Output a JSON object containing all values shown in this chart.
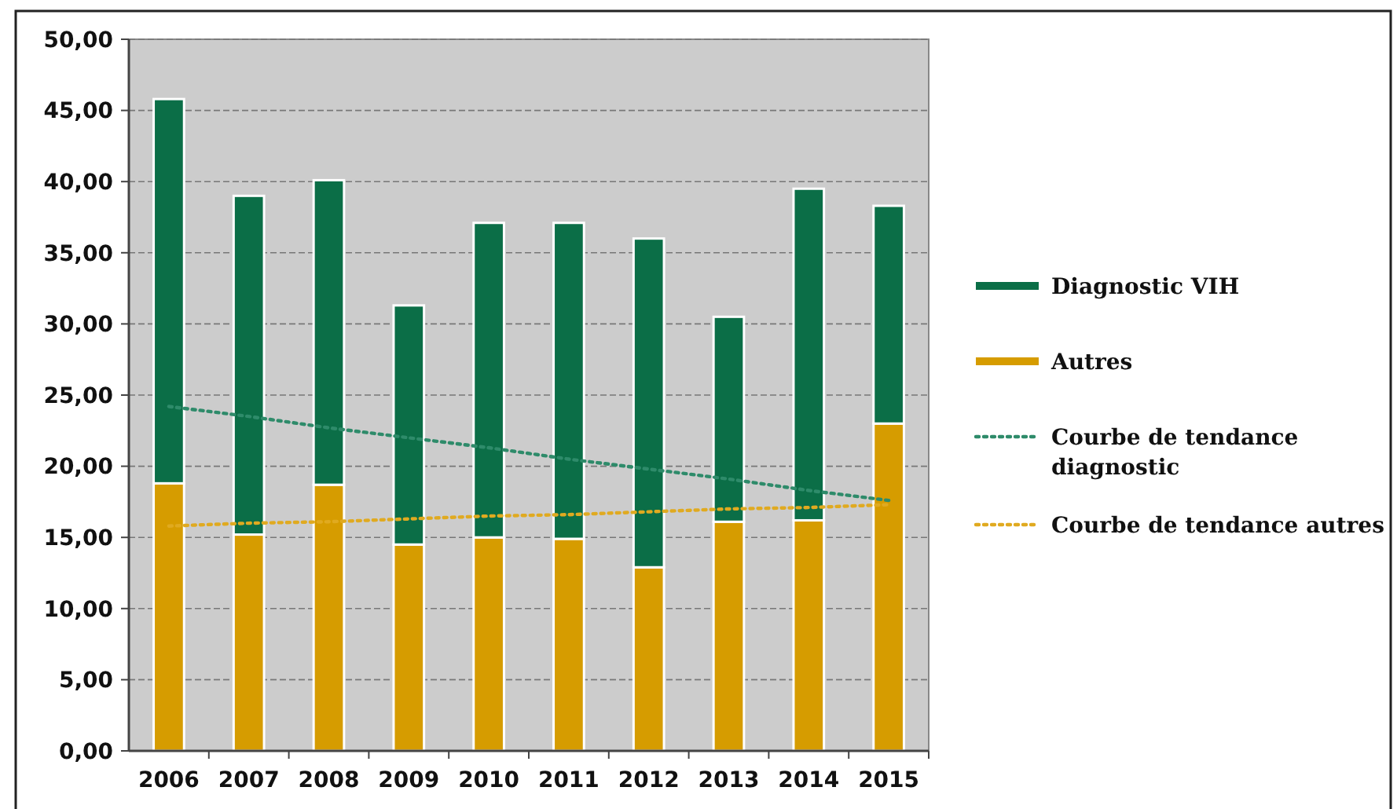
{
  "chart_data": {
    "type": "bar",
    "stacked": true,
    "categories": [
      "2006",
      "2007",
      "2008",
      "2009",
      "2010",
      "2011",
      "2012",
      "2013",
      "2014",
      "2015"
    ],
    "series": [
      {
        "name": "Autres",
        "color": "#d69c00",
        "values": [
          18.8,
          15.2,
          18.7,
          14.5,
          15.0,
          14.9,
          12.9,
          16.1,
          16.2,
          23.0
        ]
      },
      {
        "name": "Diagnostic VIH",
        "color": "#0b6e47",
        "values": [
          27.0,
          23.8,
          21.4,
          16.8,
          22.1,
          22.2,
          23.1,
          14.4,
          23.3,
          15.3
        ]
      },
      {
        "name": "Courbe de tendance diagnostic",
        "type": "line",
        "line_style": "dotted",
        "color": "#2e8b6a",
        "values": [
          24.2,
          23.5,
          22.7,
          22.0,
          21.3,
          20.5,
          19.8,
          19.1,
          18.3,
          17.6
        ]
      },
      {
        "name": "Courbe de tendance autres",
        "type": "line",
        "line_style": "dotted",
        "color": "#e0aa20",
        "values": [
          15.8,
          16.0,
          16.1,
          16.3,
          16.5,
          16.6,
          16.8,
          17.0,
          17.1,
          17.3
        ]
      }
    ],
    "ylim": [
      0,
      50
    ],
    "yticks": [
      {
        "value": 0,
        "label": "0,00"
      },
      {
        "value": 5,
        "label": "5,00"
      },
      {
        "value": 10,
        "label": "10,00"
      },
      {
        "value": 15,
        "label": "15,00"
      },
      {
        "value": 20,
        "label": "20,00"
      },
      {
        "value": 25,
        "label": "25,00"
      },
      {
        "value": 30,
        "label": "30,00"
      },
      {
        "value": 35,
        "label": "35,00"
      },
      {
        "value": 40,
        "label": "40,00"
      },
      {
        "value": 45,
        "label": "45,00"
      },
      {
        "value": 50,
        "label": "50,00"
      }
    ],
    "grid": "y",
    "legend": "right"
  }
}
